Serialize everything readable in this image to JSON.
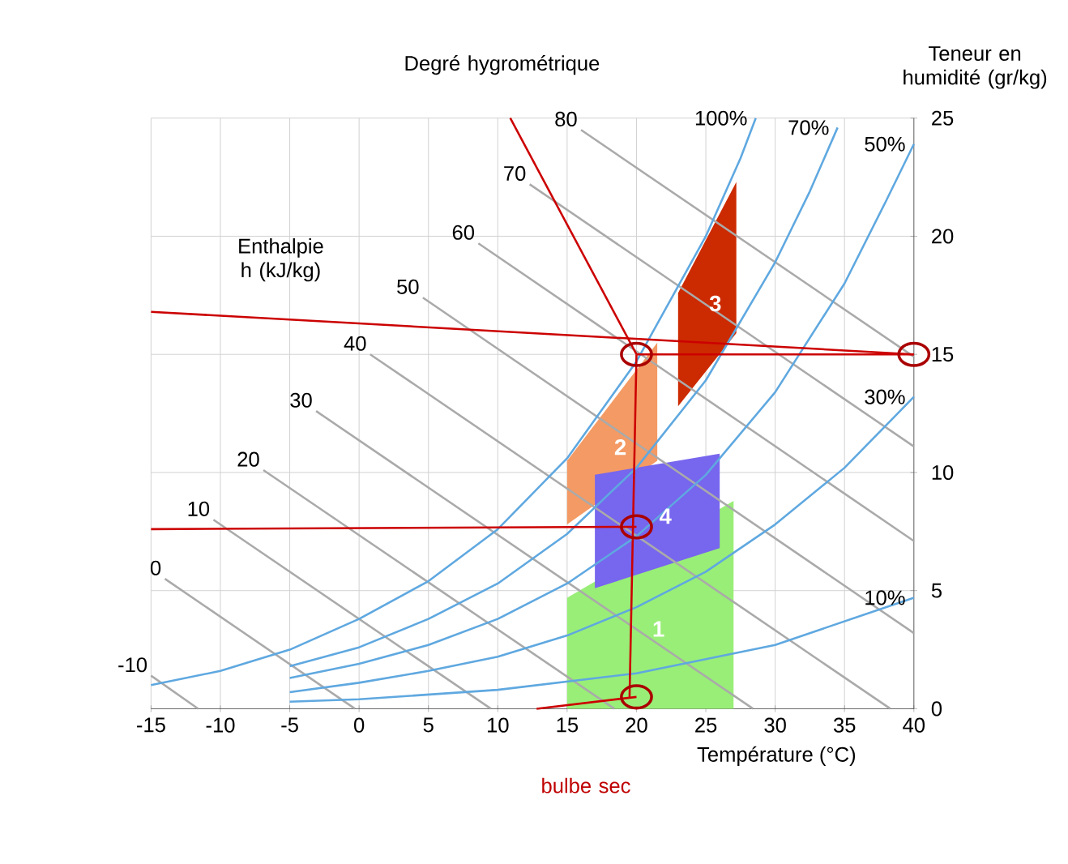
{
  "chart_data": {
    "type": "line",
    "xlabel": "Température (°C)",
    "ylabel": "Teneur en humidité (gr/kg)",
    "xlim": [
      -15,
      40
    ],
    "ylim": [
      0,
      25
    ],
    "xticks": [
      -15,
      -10,
      -5,
      0,
      5,
      10,
      15,
      20,
      25,
      30,
      35,
      40
    ],
    "yticks": [
      0,
      5,
      10,
      15,
      20,
      25
    ],
    "grid": true,
    "series": [
      {
        "type": "area",
        "name": "1",
        "color": "#99ee77",
        "x": [
          15,
          27,
          27,
          15
        ],
        "values": [
          4.7,
          8.8,
          0,
          0
        ]
      },
      {
        "type": "area",
        "name": "2",
        "color": "#f49a64",
        "x": [
          15,
          21.5,
          21.5,
          15
        ],
        "values": [
          10.5,
          15.5,
          10.5,
          7.8
        ]
      },
      {
        "type": "area",
        "name": "3",
        "color": "#cc2a00",
        "x": [
          23,
          27.2,
          27.2,
          23
        ],
        "values": [
          17.6,
          22.3,
          15.9,
          12.8
        ]
      },
      {
        "type": "area",
        "name": "4",
        "color": "#7766ee",
        "x": [
          17,
          26,
          26,
          17
        ],
        "values": [
          9.9,
          10.8,
          6.8,
          5.1
        ]
      },
      {
        "name": "-10",
        "color": "#aaaaaa",
        "x": [
          -15,
          -11.6
        ],
        "values": [
          1.4,
          0
        ]
      },
      {
        "name": "0",
        "color": "#aaaaaa",
        "x": [
          -14,
          -0.3
        ],
        "values": [
          5.5,
          0
        ]
      },
      {
        "name": "10",
        "color": "#aaaaaa",
        "x": [
          -10.5,
          9.5
        ],
        "values": [
          8.0,
          0
        ]
      },
      {
        "name": "20",
        "color": "#aaaaaa",
        "x": [
          -6.9,
          18.4
        ],
        "values": [
          10.1,
          0
        ]
      },
      {
        "name": "30",
        "color": "#aaaaaa",
        "x": [
          -3.1,
          28.4
        ],
        "values": [
          12.6,
          0
        ]
      },
      {
        "name": "40",
        "color": "#aaaaaa",
        "x": [
          0.8,
          38.3
        ],
        "values": [
          15.0,
          0
        ]
      },
      {
        "name": "50",
        "color": "#aaaaaa",
        "x": [
          4.6,
          40
        ],
        "values": [
          17.4,
          3.2
        ]
      },
      {
        "name": "60",
        "color": "#aaaaaa",
        "x": [
          8.6,
          40
        ],
        "values": [
          19.7,
          7.1
        ]
      },
      {
        "name": "70",
        "color": "#aaaaaa",
        "x": [
          12.3,
          40
        ],
        "values": [
          22.2,
          11.1
        ]
      },
      {
        "name": "80",
        "color": "#aaaaaa",
        "x": [
          16.0,
          40
        ],
        "values": [
          24.5,
          14.9
        ]
      },
      {
        "name": "100%",
        "color": "#5fa8e0",
        "x": [
          -15,
          -10,
          -5,
          0,
          5,
          10,
          15,
          20,
          25,
          27.5,
          28.6
        ],
        "values": [
          1.0,
          1.6,
          2.5,
          3.8,
          5.4,
          7.6,
          10.6,
          14.7,
          20.0,
          23.3,
          25
        ]
      },
      {
        "name": "70%",
        "color": "#5fa8e0",
        "x": [
          -5,
          0,
          5,
          10,
          15,
          20,
          25,
          30,
          32.5,
          34.5
        ],
        "values": [
          1.8,
          2.6,
          3.8,
          5.3,
          7.4,
          10.2,
          13.9,
          18.9,
          21.9,
          24.6
        ]
      },
      {
        "name": "50%",
        "color": "#5fa8e0",
        "x": [
          -5,
          0,
          5,
          10,
          15,
          20,
          25,
          30,
          35,
          38,
          40
        ],
        "values": [
          1.3,
          1.9,
          2.7,
          3.8,
          5.3,
          7.3,
          9.9,
          13.4,
          18.0,
          21.5,
          23.9
        ]
      },
      {
        "name": "30%",
        "color": "#5fa8e0",
        "x": [
          -5,
          0,
          5,
          10,
          15,
          20,
          25,
          30,
          35,
          40
        ],
        "values": [
          0.7,
          1.1,
          1.6,
          2.2,
          3.1,
          4.3,
          5.8,
          7.8,
          10.2,
          13.2
        ]
      },
      {
        "name": "10%",
        "color": "#5fa8e0",
        "x": [
          -5,
          0,
          10,
          20,
          30,
          40
        ],
        "values": [
          0.3,
          0.4,
          0.8,
          1.5,
          2.7,
          4.7
        ]
      },
      {
        "color": "#cc0000",
        "x": [
          10.9,
          20
        ],
        "values": [
          25,
          15
        ]
      },
      {
        "color": "#cc0000",
        "x": [
          -15,
          40
        ],
        "values": [
          16.8,
          15
        ]
      },
      {
        "color": "#cc0000",
        "x": [
          -15,
          20
        ],
        "values": [
          7.6,
          7.7
        ]
      },
      {
        "color": "#cc0000",
        "x": [
          12.8,
          20
        ],
        "values": [
          0,
          0.5
        ]
      },
      {
        "color": "#cc0000",
        "x": [
          19.5,
          20
        ],
        "values": [
          0.5,
          15
        ]
      },
      {
        "color": "#cc0000",
        "x": [
          20,
          40
        ],
        "values": [
          15,
          15
        ]
      },
      {
        "type": "scatter",
        "marker": "circle",
        "color": "#aa0000",
        "x": [
          20,
          40,
          20,
          20
        ],
        "values": [
          15,
          15,
          7.7,
          0.5
        ]
      }
    ],
    "annotations": [
      "Degré hygrométrique",
      "Enthalpie h (kJ/kg)",
      "bulbe sec"
    ]
  }
}
